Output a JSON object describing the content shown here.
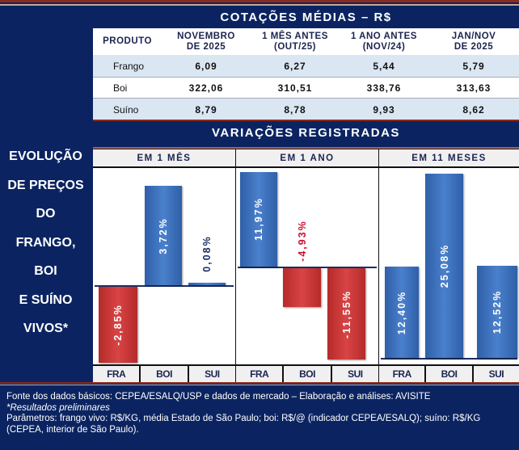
{
  "left_title": [
    "EVOLUÇÃO",
    "DE PREÇOS",
    "DO",
    "FRANGO,",
    "BOI",
    "E SUÍNO",
    "VIVOS*"
  ],
  "table": {
    "title": "COTAÇÕES MÉDIAS – R$",
    "headers": [
      "PRODUTO",
      "NOVEMBRO DE 2025",
      "1 MÊS ANTES (OUT/25)",
      "1 ANO ANTES (NOV/24)",
      "JAN/NOV DE 2025"
    ],
    "header_lines": [
      [
        "PRODUTO",
        ""
      ],
      [
        "NOVEMBRO",
        "DE 2025"
      ],
      [
        "1 MÊS ANTES",
        "(OUT/25)"
      ],
      [
        "1 ANO ANTES",
        "(NOV/24)"
      ],
      [
        "JAN/NOV",
        "DE 2025"
      ]
    ],
    "rows": [
      [
        "Frango",
        "6,09",
        "6,27",
        "5,44",
        "5,79"
      ],
      [
        "Boi",
        "322,06",
        "310,51",
        "338,76",
        "313,63"
      ],
      [
        "Suíno",
        "8,79",
        "8,78",
        "9,93",
        "8,62"
      ]
    ]
  },
  "chart_data": {
    "type": "bar",
    "title": "VARIAÇÕES REGISTRADAS",
    "panels": [
      {
        "title": "EM 1 MÊS",
        "categories": [
          "FRA",
          "BOI",
          "SUI"
        ],
        "values": [
          -2.85,
          3.72,
          0.08
        ],
        "labels": [
          "-2,85%",
          "3,72%",
          "0,08%"
        ]
      },
      {
        "title": "EM 1 ANO",
        "categories": [
          "FRA",
          "BOI",
          "SUI"
        ],
        "values": [
          11.97,
          -4.93,
          -11.55
        ],
        "labels": [
          "11,97%",
          "-4,93%",
          "-11,55%"
        ]
      },
      {
        "title": "EM 11 MESES",
        "categories": [
          "FRA",
          "BOI",
          "SUI"
        ],
        "values": [
          12.4,
          25.08,
          12.52
        ],
        "labels": [
          "12,40%",
          "25,08%",
          "12,52%"
        ]
      }
    ],
    "colors": {
      "positive": "#3a6db8",
      "negative": "#c93434",
      "outside_negative_label": "#c8102e",
      "outside_positive_label": "#1b2f66"
    }
  },
  "footer": {
    "line1": "Fonte dos dados básicos: CEPEA/ESALQ/USP e dados de mercado – Elaboração e análises: AVISITE",
    "line2": "*Resultados preliminares",
    "line3": "Parâmetros: frango vivo: R$/KG, média Estado de São Paulo; boi: R$/@ (indicador CEPEA/ESALQ); suíno: R$/KG (CEPEA, interior de São Paulo)."
  }
}
